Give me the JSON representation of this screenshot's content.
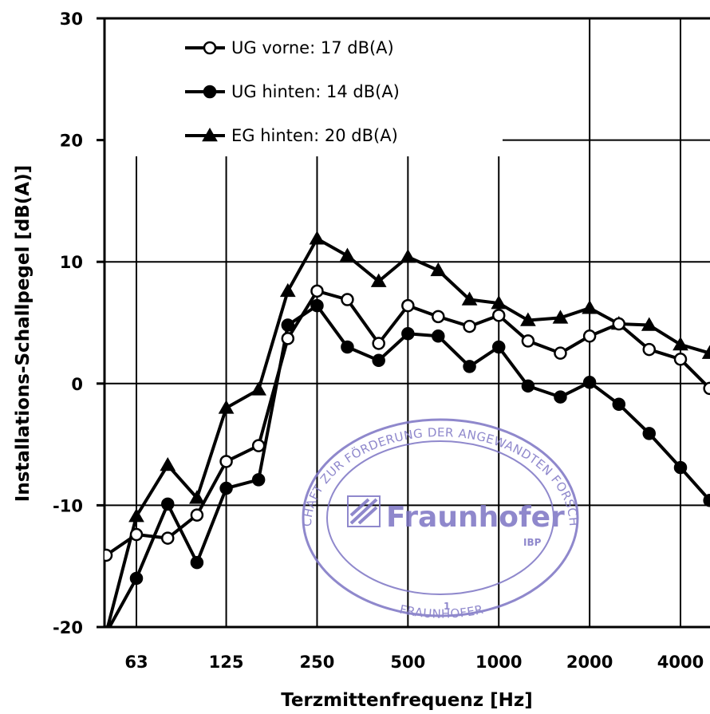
{
  "chart_data": {
    "type": "line",
    "xlabel": "Terzmittenfrequenz [Hz]",
    "ylabel": "Installations-Schallpegel [dB(A)]",
    "ylim": [
      -20,
      30
    ],
    "y_ticks": [
      "30",
      "20",
      "10",
      "0",
      "-10",
      "-20"
    ],
    "x_scale": "log",
    "x_ticks": [
      "63",
      "125",
      "250",
      "500",
      "1000",
      "2000",
      "4000"
    ],
    "x": [
      50,
      63,
      80,
      100,
      125,
      160,
      200,
      250,
      315,
      400,
      500,
      630,
      800,
      1000,
      1250,
      1600,
      2000,
      2500,
      3150,
      4000,
      5000
    ],
    "grid": true,
    "legend_position": "top-left",
    "series": [
      {
        "name": "UG vorne: 17 dB(A)",
        "marker": "circle-open",
        "values": [
          -14.1,
          -12.4,
          -12.7,
          -10.8,
          -6.4,
          -5.1,
          3.7,
          7.6,
          6.9,
          3.3,
          6.4,
          5.5,
          4.7,
          5.6,
          3.5,
          2.5,
          3.9,
          4.9,
          2.8,
          2.0,
          -0.4
        ]
      },
      {
        "name": "UG hinten: 14 dB(A)",
        "marker": "circle-filled",
        "values": [
          -20.5,
          -16.0,
          -9.9,
          -14.7,
          -8.6,
          -7.9,
          4.8,
          6.4,
          3.0,
          1.9,
          4.1,
          3.9,
          1.4,
          3.0,
          -0.2,
          -1.1,
          0.1,
          -1.7,
          -4.1,
          -6.9,
          -9.6
        ]
      },
      {
        "name": "EG hinten: 20 dB(A)",
        "marker": "triangle-filled",
        "values": [
          -20.5,
          -10.9,
          -6.7,
          -9.4,
          -2.0,
          -0.5,
          7.6,
          11.9,
          10.5,
          8.4,
          10.4,
          9.3,
          6.9,
          6.6,
          5.2,
          5.4,
          6.2,
          4.9,
          4.8,
          3.2,
          2.5
        ]
      }
    ]
  },
  "stamp": {
    "brand": "Fraunhofer",
    "institute": "IBP",
    "ring_text": "GESELLSCHAFT ZUR FÖRDERUNG DER ANGEWANDTEN FORSCHUNG E.V.",
    "ring_text_bottom": "FRAUNHOFER",
    "number": "1",
    "color": "#7c74c4"
  }
}
